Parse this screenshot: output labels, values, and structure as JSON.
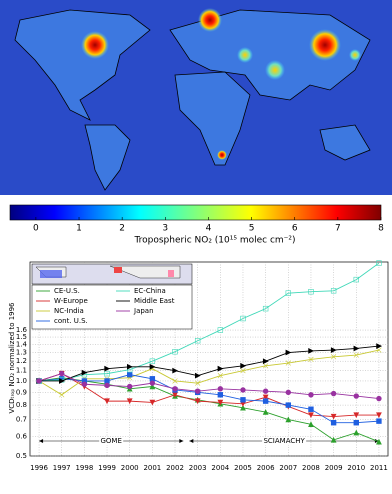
{
  "chart_data": [
    {
      "type": "colorbar",
      "title": "Tropospheric NO₂ (10¹⁵ molec cm⁻²)",
      "xlim": [
        -0.6,
        8
      ],
      "xticks": [
        0,
        1,
        2,
        3,
        4,
        5,
        6,
        7,
        8
      ]
    },
    {
      "type": "line",
      "ylabel": "VCDₜᵣₒₚ NO₂ normalized to 1996",
      "x": [
        1996,
        1997,
        1998,
        1999,
        2000,
        2001,
        2002,
        2003,
        2004,
        2005,
        2006,
        2007,
        2008,
        2009,
        2010,
        2011
      ],
      "xlim": [
        1995.6,
        2011.4
      ],
      "xticks": [
        1996,
        1997,
        1998,
        1999,
        2000,
        2001,
        2002,
        2003,
        2004,
        2005,
        2006,
        2007,
        2008,
        2009,
        2010,
        2011
      ],
      "ylim": [
        0.5,
        3.0
      ],
      "log": true,
      "grid": true,
      "yticks": [
        0.5,
        0.6,
        0.7,
        0.8,
        0.9,
        {
          "value": 1.0,
          "label": "1.0"
        },
        1.1,
        1.2,
        1.3,
        1.4,
        1.5,
        1.6
      ],
      "annotations": [
        "GOME",
        "SCIAMACHY"
      ],
      "series": [
        {
          "name": "CE-U.S.",
          "color": "#2ca02c",
          "marker": "triangle",
          "values": [
            1.0,
            1.03,
            1.0,
            0.97,
            0.93,
            0.95,
            0.87,
            0.84,
            0.81,
            0.78,
            0.75,
            0.7,
            0.67,
            0.58,
            0.62,
            0.57
          ]
        },
        {
          "name": "W-Europe",
          "color": "#d62728",
          "marker": "triangle-down",
          "values": [
            1.0,
            1.07,
            0.95,
            0.83,
            0.83,
            0.82,
            0.88,
            0.83,
            0.82,
            0.81,
            0.86,
            0.79,
            0.73,
            0.72,
            0.73,
            0.73
          ]
        },
        {
          "name": "NC-India",
          "color": "#c8c832",
          "marker": "x",
          "values": [
            1.0,
            0.88,
            1.02,
            1.02,
            1.03,
            1.12,
            1.0,
            0.98,
            1.05,
            1.1,
            1.15,
            1.18,
            1.22,
            1.25,
            1.27,
            1.33
          ]
        },
        {
          "name": "cont. U.S.",
          "color": "#1f5fe0",
          "marker": "square",
          "values": [
            1.0,
            1.02,
            1.0,
            1.0,
            1.06,
            1.02,
            0.92,
            0.9,
            0.88,
            0.84,
            0.83,
            0.8,
            0.77,
            0.68,
            0.68,
            0.69
          ]
        },
        {
          "name": "EC-China",
          "color": "#40d8b8",
          "marker": "open-square",
          "values": [
            1.0,
            1.01,
            1.06,
            1.07,
            1.11,
            1.2,
            1.31,
            1.45,
            1.6,
            1.78,
            1.95,
            2.25,
            2.28,
            2.3,
            2.55,
            2.97
          ]
        },
        {
          "name": "Middle East",
          "color": "#000000",
          "marker": "triangle-right",
          "values": [
            1.0,
            1.0,
            1.08,
            1.12,
            1.14,
            1.14,
            1.1,
            1.05,
            1.12,
            1.15,
            1.2,
            1.3,
            1.32,
            1.33,
            1.35,
            1.38
          ]
        },
        {
          "name": "Japan",
          "color": "#9932a0",
          "marker": "circle",
          "values": [
            1.0,
            1.07,
            0.97,
            0.96,
            0.95,
            0.98,
            0.93,
            0.91,
            0.93,
            0.92,
            0.91,
            0.9,
            0.88,
            0.89,
            0.87,
            0.85
          ]
        }
      ]
    }
  ]
}
